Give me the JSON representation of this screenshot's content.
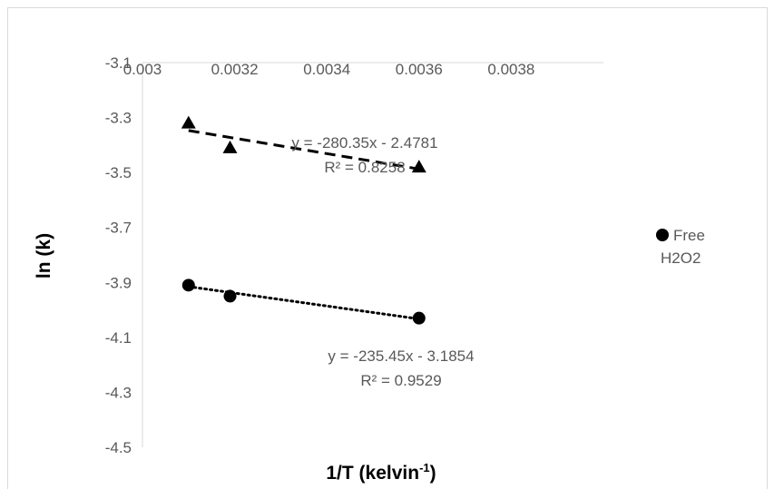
{
  "chart_data": {
    "type": "scatter",
    "title": "",
    "xlabel": {
      "base": "1/T (kelvin",
      "sup": "-1",
      "tail": ")"
    },
    "ylabel": "ln (k)",
    "xlim": [
      0.003,
      0.004
    ],
    "ylim": [
      -4.5,
      -3.1
    ],
    "x_ticks": [
      "0.003",
      "0.0032",
      "0.0034",
      "0.0036",
      "0.0038"
    ],
    "y_ticks": [
      "-3.1",
      "-3.3",
      "-3.5",
      "-3.7",
      "-3.9",
      "-4.1",
      "-4.3",
      "-4.5"
    ],
    "grid": false,
    "legend_position": "right",
    "series": [
      {
        "name": "",
        "marker": "triangle",
        "color": "#000000",
        "points": [
          {
            "x": 0.0031,
            "y": -3.32
          },
          {
            "x": 0.00319,
            "y": -3.41
          },
          {
            "x": 0.0036,
            "y": -3.48
          }
        ],
        "trendline": {
          "style": "dashed",
          "slope": -280.35,
          "intercept": -2.4781
        },
        "equation": "y = -280.35x - 2.4781",
        "r2": "R² = 0.8258"
      },
      {
        "name": "Free H2O2",
        "marker": "circle",
        "color": "#000000",
        "points": [
          {
            "x": 0.0031,
            "y": -3.91
          },
          {
            "x": 0.00319,
            "y": -3.95
          },
          {
            "x": 0.0036,
            "y": -4.03
          }
        ],
        "trendline": {
          "style": "dotted",
          "slope": -235.45,
          "intercept": -3.1854
        },
        "equation": "y = -235.45x - 3.1854",
        "r2": "R² = 0.9529"
      }
    ],
    "legend": [
      {
        "label_line1": "Free",
        "label_line2": "H2O2",
        "marker": "circle"
      }
    ]
  }
}
